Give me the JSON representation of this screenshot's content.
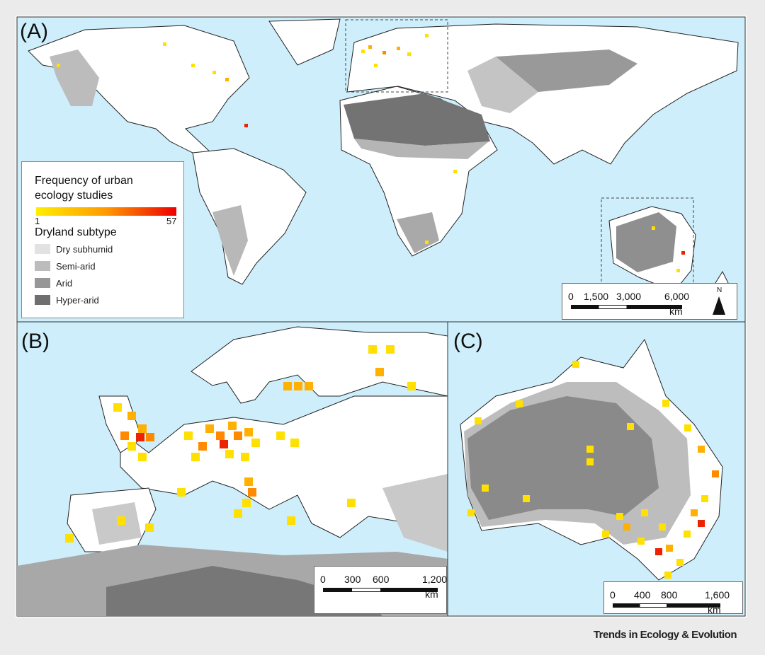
{
  "panels": {
    "a": "(A)",
    "b": "(B)",
    "c": "(C)"
  },
  "legend": {
    "title": "Frequency of urban ecology studies",
    "min": 1,
    "max": 57,
    "subtype_title": "Dryland subtype",
    "subtypes": [
      {
        "name": "Dry subhumid",
        "color": "#e2e2e2"
      },
      {
        "name": "Semi-arid",
        "color": "#bcbcbc"
      },
      {
        "name": "Arid",
        "color": "#979797"
      },
      {
        "name": "Hyper-arid",
        "color": "#6f6f6f"
      }
    ]
  },
  "scale_a": {
    "labels": [
      "0",
      "1,500",
      "3,000",
      "6,000"
    ],
    "unit": "km"
  },
  "scale_b": {
    "labels": [
      "0",
      "300",
      "600",
      "1,200"
    ],
    "unit": "km"
  },
  "scale_c": {
    "labels": [
      "0",
      "400",
      "800",
      "1,600"
    ],
    "unit": "km"
  },
  "north": "N",
  "credit": "Trends in Ecology & Evolution"
}
